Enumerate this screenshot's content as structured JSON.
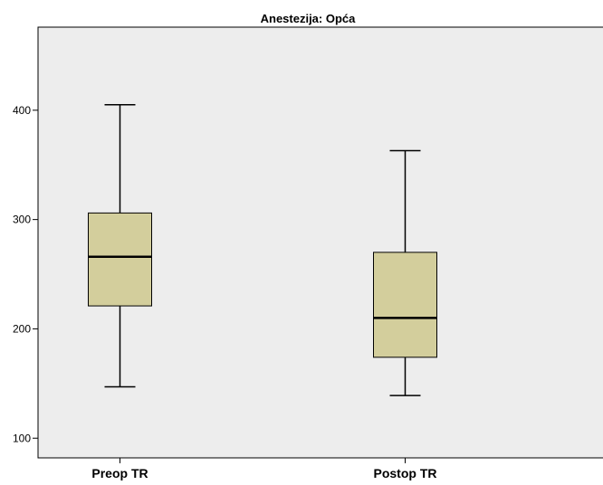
{
  "chart_data": {
    "type": "boxplot",
    "title": "Anestezija: Opća",
    "xlabel": "",
    "ylabel": "",
    "categories": [
      "Preop TR",
      "Postop TR"
    ],
    "boxes": [
      {
        "category": "Preop TR",
        "min": 147,
        "q1": 221,
        "median": 266,
        "q3": 306,
        "max": 405
      },
      {
        "category": "Postop TR",
        "min": 139,
        "q1": 174,
        "median": 210,
        "q3": 270,
        "max": 363
      }
    ],
    "y_ticks": [
      100,
      200,
      300,
      400
    ],
    "ylim": [
      82,
      476
    ],
    "grid": false,
    "colors": {
      "plot_bg": "#ededed",
      "box_fill": "#d3ce9c",
      "stroke": "#000000"
    }
  }
}
